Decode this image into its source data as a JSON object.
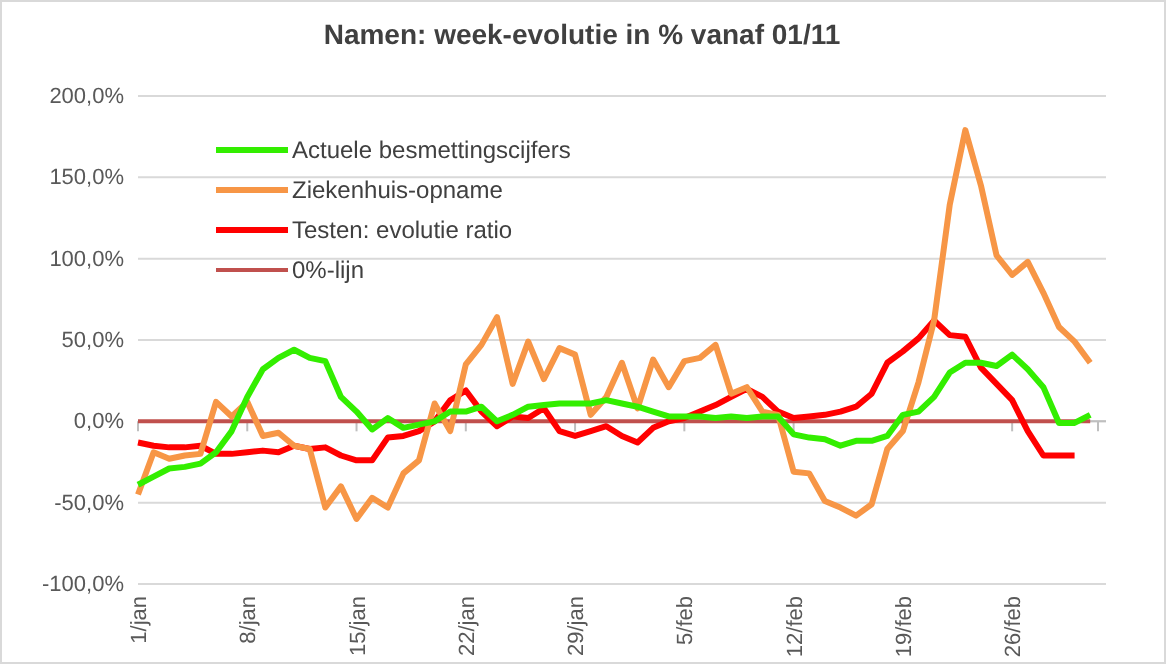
{
  "chart_data": {
    "type": "line",
    "title": "Namen: week-evolutie in % vanaf 01/11",
    "categories": [
      "1/jan",
      null,
      null,
      null,
      null,
      null,
      null,
      "8/jan",
      null,
      null,
      null,
      null,
      null,
      null,
      "15/jan",
      null,
      null,
      null,
      null,
      null,
      null,
      "22/jan",
      null,
      null,
      null,
      null,
      null,
      null,
      "29/jan",
      null,
      null,
      null,
      null,
      null,
      null,
      "5/feb",
      null,
      null,
      null,
      null,
      null,
      null,
      "12/feb",
      null,
      null,
      null,
      null,
      null,
      null,
      "19/feb",
      null,
      null,
      null,
      null,
      null,
      null,
      "26/feb",
      null,
      null,
      null,
      null,
      null
    ],
    "series": [
      {
        "name": "Actuele besmettingscijfers",
        "color": "#33ee00",
        "values": [
          -39,
          -34,
          -29,
          -28,
          -26,
          -19,
          -6,
          15,
          32,
          39,
          44,
          39,
          37,
          15,
          6,
          -5,
          2,
          -4,
          -2,
          0,
          6,
          6,
          9,
          0,
          4,
          9,
          10,
          11,
          11,
          11,
          13,
          11,
          9,
          6,
          3,
          3,
          3,
          2,
          3,
          2,
          3,
          3,
          -8,
          -10,
          -11,
          -15,
          -12,
          -12,
          -9,
          4,
          6,
          15,
          30,
          36,
          36,
          34,
          41,
          32,
          21,
          -1,
          -1,
          4
        ]
      },
      {
        "name": "Ziekenhuis-opname",
        "color": "#f79646",
        "values": [
          -45,
          -19,
          -23,
          -21,
          -20,
          12,
          3,
          12,
          -9,
          -7,
          -15,
          -17,
          -53,
          -40,
          -60,
          -47,
          -53,
          -32,
          -24,
          11,
          -6,
          35,
          47,
          64,
          23,
          49,
          26,
          45,
          41,
          4,
          15,
          36,
          8,
          38,
          21,
          37,
          39,
          47,
          17,
          21,
          6,
          4,
          -31,
          -32,
          -49,
          -53,
          -58,
          -51,
          -17,
          -6,
          24,
          62,
          133,
          179,
          145,
          102,
          90,
          98,
          79,
          58,
          49,
          36
        ]
      },
      {
        "name": "Testen: evolutie ratio",
        "color": "#ff0000",
        "values": [
          -13,
          -15,
          -16,
          -16,
          -15,
          -20,
          -20,
          -19,
          -18,
          -19,
          -15,
          -17,
          -16,
          -21,
          -24,
          -24,
          -10,
          -9,
          -6,
          0,
          13,
          19,
          6,
          -3,
          3,
          2,
          8,
          -6,
          -9,
          -6,
          -3,
          -9,
          -13,
          -4,
          0,
          2,
          6,
          10,
          15,
          20,
          15,
          6,
          2,
          3,
          4,
          6,
          9,
          17,
          36,
          43,
          51,
          62,
          53,
          52,
          33,
          23,
          13,
          -6,
          -21,
          -21,
          -21,
          null
        ]
      },
      {
        "name": "0%-lijn",
        "color": "#c0504d",
        "values": [
          0,
          0,
          0,
          0,
          0,
          0,
          0,
          0,
          0,
          0,
          0,
          0,
          0,
          0,
          0,
          0,
          0,
          0,
          0,
          0,
          0,
          0,
          0,
          0,
          0,
          0,
          0,
          0,
          0,
          0,
          0,
          0,
          0,
          0,
          0,
          0,
          0,
          0,
          0,
          0,
          0,
          0,
          0,
          0,
          0,
          0,
          0,
          0,
          0,
          0,
          0,
          0,
          0,
          0,
          0,
          0,
          0,
          0,
          0,
          0,
          0,
          0
        ]
      }
    ],
    "ylim": [
      -100,
      200
    ],
    "yticks": [
      {
        "value": -100,
        "label": "-100,0%"
      },
      {
        "value": -50,
        "label": "-50,0%"
      },
      {
        "value": 0,
        "label": "0,0%"
      },
      {
        "value": 50,
        "label": "50,0%"
      },
      {
        "value": 100,
        "label": "100,0%"
      },
      {
        "value": 150,
        "label": "150,0%"
      },
      {
        "value": 200,
        "label": "200,0%"
      }
    ],
    "grid": "y",
    "legend": "top left",
    "marker": "none",
    "line_style": "solid"
  }
}
